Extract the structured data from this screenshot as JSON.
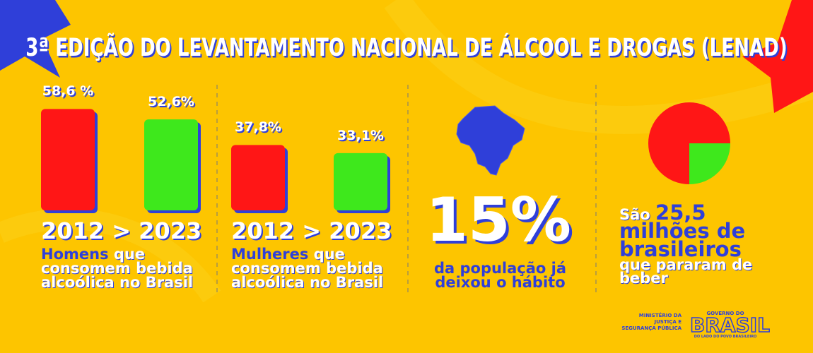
{
  "title": "3ª EDIÇÃO DO LEVANTAMENTO NACIONAL DE ÁLCOOL E DROGAS (LENAD)",
  "panels": [
    {
      "values": [
        58.6,
        52.6
      ],
      "value_labels": [
        "58,6 %",
        "52,6%"
      ],
      "colors": [
        "#ff1616",
        "#3ee81c"
      ],
      "years_label": "2012 > 2023",
      "highlight": "Homens",
      "text": "que consomem bebida alcoólica no Brasil"
    },
    {
      "values": [
        37.8,
        33.1
      ],
      "value_labels": [
        "37,8%",
        "33,1%"
      ],
      "colors": [
        "#ff1616",
        "#3ee81c"
      ],
      "years_label": "2012 > 2023",
      "highlight": "Mulheres",
      "text": "que consomem bebida alcoólica no Brasil"
    }
  ],
  "stat": {
    "number": "15%",
    "text": "da população já deixou o hábito"
  },
  "pie": {
    "type": "pie",
    "values": [
      75,
      25
    ],
    "colors": [
      "#ff1616",
      "#3ee81c"
    ]
  },
  "callout": {
    "prefix": "São",
    "number": "25,5",
    "line2": "milhões de",
    "line3": "brasileiros",
    "line4": "que pararam de",
    "line5": "beber"
  },
  "footer": {
    "ministry": [
      "MINISTÉRIO DA",
      "JUSTIÇA E",
      "SEGURANÇA PÚBLICA"
    ],
    "brand_top": "GOVERNO DO",
    "brand": "BRASIL",
    "brand_bottom": "DO LADO DO POVO BRASILEIRO"
  }
}
